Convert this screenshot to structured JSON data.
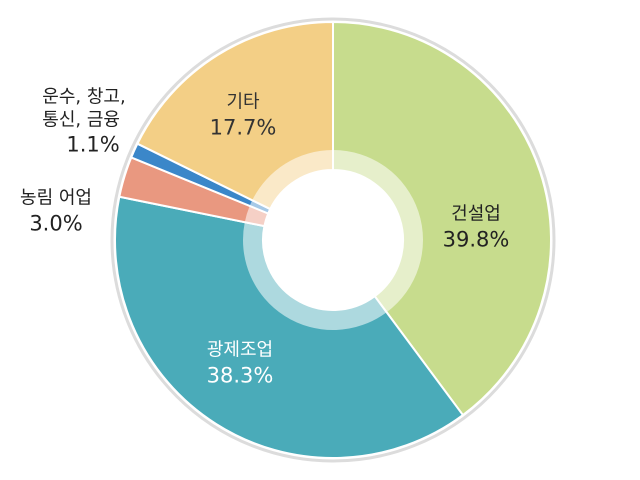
{
  "chart_data": {
    "type": "donut",
    "categories": [
      "건설업",
      "광제조업",
      "농림 어업",
      "운수, 창고,\n통신, 금융",
      "기타"
    ],
    "values": [
      39.8,
      38.3,
      3.0,
      1.1,
      17.7
    ],
    "value_labels": [
      "39.8%",
      "38.3%",
      "3.0%",
      "1.1%",
      "17.7%"
    ],
    "colors": [
      "#c7dc8d",
      "#4aabb9",
      "#e99880",
      "#3b87c9",
      "#f3cf86"
    ]
  }
}
